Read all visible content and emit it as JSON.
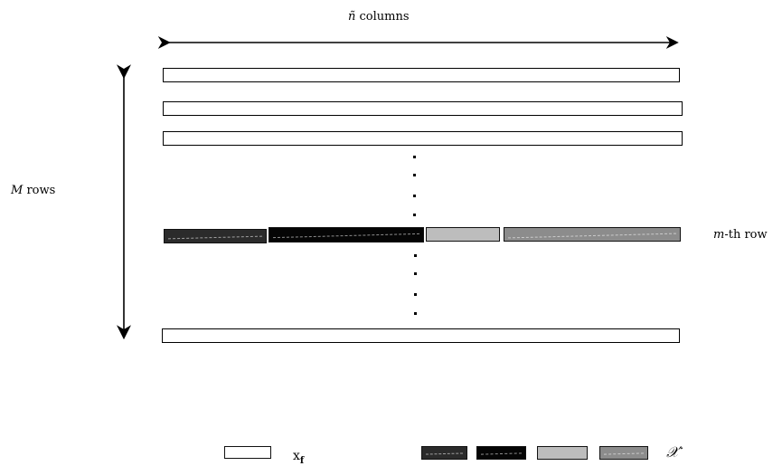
{
  "top_label": {
    "symbol": "ñ",
    "text": "columns"
  },
  "left_label": {
    "symbol": "M",
    "text": "rows"
  },
  "right_label": {
    "symbol": "m",
    "text": "-th row"
  },
  "legend": {
    "blank_symbol": "x",
    "blank_subscript": "f",
    "shaded_symbol": "𝒳′"
  },
  "colors": {
    "segment_1": "#2b2b2b",
    "segment_2": "#050505",
    "segment_3": "#bdbdbd",
    "segment_4": "#8c8c8c",
    "outline": "#000000"
  }
}
